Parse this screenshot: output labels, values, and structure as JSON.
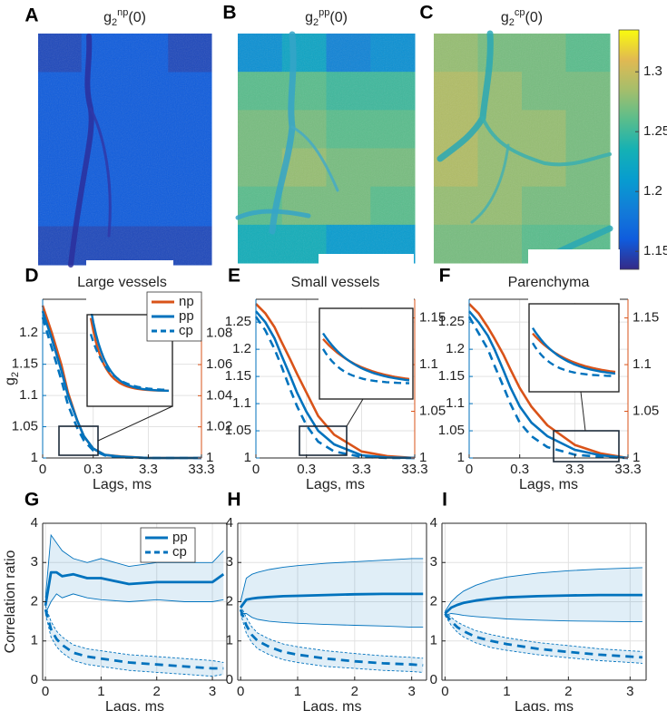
{
  "chart_data": [
    {
      "type": "heatmap",
      "panel": "A",
      "title": {
        "base": "g",
        "sub": "2",
        "sup": "np",
        "tail": "(0)"
      },
      "values": [
        [
          1.15,
          1.16,
          1.16,
          1.15
        ],
        [
          1.16,
          1.16,
          1.16,
          1.16
        ],
        [
          1.16,
          1.16,
          1.16,
          1.16
        ],
        [
          1.16,
          1.16,
          1.16,
          1.16
        ],
        [
          1.16,
          1.16,
          1.16,
          1.16
        ],
        [
          1.15,
          1.15,
          1.15,
          1.15
        ]
      ]
    },
    {
      "type": "heatmap",
      "panel": "B",
      "title": {
        "base": "g",
        "sub": "2",
        "sup": "pp",
        "tail": "(0)"
      },
      "values": [
        [
          1.2,
          1.22,
          1.19,
          1.2
        ],
        [
          1.26,
          1.26,
          1.25,
          1.25
        ],
        [
          1.27,
          1.27,
          1.26,
          1.26
        ],
        [
          1.27,
          1.28,
          1.27,
          1.27
        ],
        [
          1.26,
          1.27,
          1.27,
          1.26
        ],
        [
          1.23,
          1.23,
          1.21,
          1.21
        ]
      ]
    },
    {
      "type": "heatmap",
      "panel": "C",
      "title": {
        "base": "g",
        "sub": "2",
        "sup": "cp",
        "tail": "(0)"
      },
      "values": [
        [
          1.28,
          1.27,
          1.27,
          1.26
        ],
        [
          1.29,
          1.28,
          1.27,
          1.27
        ],
        [
          1.29,
          1.28,
          1.28,
          1.27
        ],
        [
          1.29,
          1.28,
          1.28,
          1.27
        ],
        [
          1.28,
          1.28,
          1.27,
          1.27
        ],
        [
          1.27,
          1.27,
          1.26,
          1.26
        ]
      ]
    },
    {
      "type": "colorbar",
      "clim": [
        1.135,
        1.335
      ],
      "ticks": [
        1.15,
        1.2,
        1.25,
        1.3
      ]
    },
    {
      "type": "line",
      "panel": "D",
      "title": "Large vessels",
      "xlabel": "Lags, ms",
      "ylabel": {
        "base": "g",
        "sub": "2"
      },
      "xscale": "log",
      "x": [
        0.0333,
        0.05,
        0.075,
        0.1,
        0.15,
        0.2,
        0.3,
        0.5,
        1,
        3.3,
        10,
        33.3
      ],
      "xlim": [
        0.0333,
        33.3
      ],
      "xticks": [
        {
          "value": 0.0333,
          "label": "0"
        },
        0.3,
        3.3,
        33.3
      ],
      "ylim": [
        1,
        1.254
      ],
      "yticks": [
        1,
        1.05,
        1.1,
        1.15,
        1.2
      ],
      "y2lim": [
        1,
        1.102
      ],
      "y2ticks": [
        1,
        1.02,
        1.04,
        1.06,
        1.08
      ],
      "axis_color": "#0072bd",
      "y2_color": "#d95319",
      "grid": true,
      "legend": "upper right",
      "series": [
        {
          "name": "np",
          "color": "#d95319",
          "linestyle": "solid",
          "axis": "y2",
          "values": [
            1.098,
            1.08,
            1.06,
            1.042,
            1.024,
            1.014,
            1.006,
            1.002,
            1.001,
            1.0,
            1.0,
            1.0
          ]
        },
        {
          "name": "pp",
          "color": "#0072bd",
          "linestyle": "solid",
          "values": [
            1.235,
            1.19,
            1.14,
            1.1,
            1.06,
            1.035,
            1.015,
            1.005,
            1.002,
            1.0,
            1.0,
            1.0
          ]
        },
        {
          "name": "cp",
          "color": "#0072bd",
          "linestyle": "dashed",
          "values": [
            1.225,
            1.175,
            1.125,
            1.085,
            1.048,
            1.028,
            1.012,
            1.004,
            1.001,
            1.0,
            1.0,
            1.0
          ]
        }
      ]
    },
    {
      "type": "line",
      "panel": "E",
      "title": "Small vessels",
      "xlabel": "Lags, ms",
      "xscale": "log",
      "x": [
        0.0333,
        0.05,
        0.075,
        0.1,
        0.15,
        0.2,
        0.3,
        0.5,
        1,
        3.3,
        10,
        33.3
      ],
      "xlim": [
        0.0333,
        33.3
      ],
      "xticks": [
        {
          "value": 0.0333,
          "label": "0"
        },
        0.3,
        3.3,
        33.3
      ],
      "ylim": [
        1,
        1.292
      ],
      "yticks": [
        1,
        1.05,
        1.1,
        1.15,
        1.2,
        1.25
      ],
      "y2lim": [
        1,
        1.17
      ],
      "y2ticks": [
        1,
        1.05,
        1.1,
        1.15
      ],
      "axis_color": "#0072bd",
      "y2_color": "#d95319",
      "grid": true,
      "series": [
        {
          "name": "np",
          "color": "#d95319",
          "linestyle": "solid",
          "axis": "y2",
          "values": [
            1.165,
            1.155,
            1.14,
            1.125,
            1.105,
            1.09,
            1.07,
            1.045,
            1.025,
            1.007,
            1.002,
            1.0
          ]
        },
        {
          "name": "pp",
          "color": "#0072bd",
          "linestyle": "solid",
          "values": [
            1.27,
            1.25,
            1.22,
            1.19,
            1.15,
            1.12,
            1.085,
            1.05,
            1.025,
            1.005,
            1.001,
            1.0
          ]
        },
        {
          "name": "cp",
          "color": "#0072bd",
          "linestyle": "dashed",
          "values": [
            1.26,
            1.235,
            1.2,
            1.17,
            1.125,
            1.095,
            1.06,
            1.03,
            1.012,
            1.002,
            1.0,
            1.0
          ]
        }
      ]
    },
    {
      "type": "line",
      "panel": "F",
      "title": "Parenchyma",
      "xlabel": "Lags, ms",
      "xscale": "log",
      "x": [
        0.0333,
        0.05,
        0.075,
        0.1,
        0.15,
        0.2,
        0.3,
        0.5,
        1,
        3.3,
        10,
        33.3
      ],
      "xlim": [
        0.0333,
        33.3
      ],
      "xticks": [
        {
          "value": 0.0333,
          "label": "0"
        },
        0.3,
        3.3,
        33.3
      ],
      "ylim": [
        1,
        1.292
      ],
      "yticks": [
        1,
        1.05,
        1.1,
        1.15,
        1.2,
        1.25
      ],
      "y2lim": [
        1,
        1.17
      ],
      "y2ticks": [
        1,
        1.05,
        1.1,
        1.15
      ],
      "axis_color": "#0072bd",
      "y2_color": "#d95319",
      "grid": true,
      "series": [
        {
          "name": "np",
          "color": "#d95319",
          "linestyle": "solid",
          "axis": "y2",
          "values": [
            1.165,
            1.155,
            1.14,
            1.128,
            1.11,
            1.095,
            1.075,
            1.055,
            1.035,
            1.014,
            1.005,
            1.0
          ]
        },
        {
          "name": "pp",
          "color": "#0072bd",
          "linestyle": "solid",
          "values": [
            1.27,
            1.25,
            1.225,
            1.2,
            1.16,
            1.13,
            1.095,
            1.065,
            1.04,
            1.015,
            1.005,
            1.0
          ]
        },
        {
          "name": "cp",
          "color": "#0072bd",
          "linestyle": "dashed",
          "values": [
            1.26,
            1.23,
            1.2,
            1.17,
            1.13,
            1.1,
            1.065,
            1.04,
            1.02,
            1.006,
            1.002,
            1.0
          ]
        }
      ]
    },
    {
      "type": "line",
      "panel": "G",
      "xlabel": "Lags, ms",
      "ylabel": "Correlation ratio",
      "x": [
        0,
        0.1,
        0.2,
        0.3,
        0.5,
        0.75,
        1,
        1.5,
        2,
        2.5,
        3,
        3.2
      ],
      "xlim": [
        -0.05,
        3.26
      ],
      "xticks": [
        0,
        1,
        2,
        3
      ],
      "ylim": [
        0,
        4
      ],
      "yticks": [
        0,
        1,
        2,
        3,
        4
      ],
      "grid": true,
      "legend": "upper right",
      "series": [
        {
          "name": "pp",
          "color": "#0072bd",
          "linestyle": "solid",
          "values": [
            1.9,
            2.75,
            2.75,
            2.65,
            2.7,
            2.6,
            2.6,
            2.45,
            2.5,
            2.5,
            2.5,
            2.7
          ],
          "lower": [
            1.7,
            2.0,
            2.2,
            2.1,
            2.2,
            2.1,
            2.05,
            2.0,
            2.05,
            2.0,
            2.0,
            2.05
          ],
          "upper": [
            2.1,
            3.7,
            3.5,
            3.3,
            3.1,
            3.0,
            3.1,
            2.9,
            3.0,
            3.0,
            3.0,
            3.3
          ]
        },
        {
          "name": "cp",
          "color": "#0072bd",
          "linestyle": "dashed",
          "values": [
            1.8,
            1.3,
            1.05,
            0.9,
            0.7,
            0.6,
            0.55,
            0.45,
            0.4,
            0.35,
            0.3,
            0.3
          ],
          "lower": [
            1.7,
            1.1,
            0.85,
            0.7,
            0.5,
            0.4,
            0.35,
            0.25,
            0.2,
            0.15,
            0.1,
            0.15
          ],
          "upper": [
            1.9,
            1.5,
            1.25,
            1.1,
            0.9,
            0.8,
            0.75,
            0.65,
            0.6,
            0.55,
            0.5,
            0.45
          ]
        }
      ]
    },
    {
      "type": "line",
      "panel": "H",
      "xlabel": "Lags, ms",
      "x": [
        0,
        0.1,
        0.2,
        0.3,
        0.5,
        0.75,
        1,
        1.5,
        2,
        2.5,
        3,
        3.2
      ],
      "xlim": [
        -0.05,
        3.26
      ],
      "xticks": [
        0,
        1,
        2,
        3
      ],
      "ylim": [
        0,
        4
      ],
      "yticks": [
        0,
        1,
        2,
        3,
        4
      ],
      "grid": true,
      "series": [
        {
          "name": "pp",
          "color": "#0072bd",
          "linestyle": "solid",
          "values": [
            1.85,
            2.05,
            2.08,
            2.1,
            2.12,
            2.14,
            2.15,
            2.17,
            2.19,
            2.2,
            2.2,
            2.2
          ],
          "lower": [
            1.7,
            1.7,
            1.6,
            1.55,
            1.5,
            1.47,
            1.45,
            1.42,
            1.4,
            1.38,
            1.35,
            1.35
          ],
          "upper": [
            2.0,
            2.6,
            2.7,
            2.75,
            2.82,
            2.88,
            2.92,
            2.98,
            3.02,
            3.06,
            3.1,
            3.1
          ]
        },
        {
          "name": "cp",
          "color": "#0072bd",
          "linestyle": "dashed",
          "values": [
            1.8,
            1.4,
            1.15,
            1.0,
            0.85,
            0.72,
            0.65,
            0.55,
            0.48,
            0.43,
            0.4,
            0.38
          ],
          "lower": [
            1.7,
            1.2,
            0.95,
            0.8,
            0.65,
            0.52,
            0.45,
            0.35,
            0.3,
            0.25,
            0.22,
            0.2
          ],
          "upper": [
            1.9,
            1.6,
            1.35,
            1.2,
            1.05,
            0.92,
            0.85,
            0.75,
            0.68,
            0.62,
            0.58,
            0.56
          ]
        }
      ]
    },
    {
      "type": "line",
      "panel": "I",
      "xlabel": "Lags, ms",
      "x": [
        0,
        0.1,
        0.2,
        0.3,
        0.5,
        0.75,
        1,
        1.5,
        2,
        2.5,
        3,
        3.2
      ],
      "xlim": [
        -0.05,
        3.26
      ],
      "xticks": [
        0,
        1,
        2,
        3
      ],
      "ylim": [
        0,
        4
      ],
      "yticks": [
        0,
        1,
        2,
        3,
        4
      ],
      "grid": true,
      "series": [
        {
          "name": "pp",
          "color": "#0072bd",
          "linestyle": "solid",
          "values": [
            1.7,
            1.85,
            1.92,
            1.97,
            2.03,
            2.08,
            2.11,
            2.14,
            2.16,
            2.17,
            2.17,
            2.17
          ],
          "lower": [
            1.65,
            1.7,
            1.68,
            1.65,
            1.62,
            1.59,
            1.56,
            1.53,
            1.51,
            1.5,
            1.49,
            1.49
          ],
          "upper": [
            1.75,
            2.0,
            2.15,
            2.27,
            2.42,
            2.55,
            2.63,
            2.73,
            2.79,
            2.83,
            2.86,
            2.87
          ]
        },
        {
          "name": "cp",
          "color": "#0072bd",
          "linestyle": "dashed",
          "values": [
            1.7,
            1.5,
            1.35,
            1.25,
            1.1,
            1.0,
            0.92,
            0.8,
            0.72,
            0.65,
            0.6,
            0.58
          ],
          "lower": [
            1.65,
            1.4,
            1.22,
            1.1,
            0.95,
            0.83,
            0.76,
            0.65,
            0.57,
            0.5,
            0.45,
            0.43
          ],
          "upper": [
            1.75,
            1.6,
            1.48,
            1.4,
            1.26,
            1.16,
            1.08,
            0.96,
            0.88,
            0.8,
            0.75,
            0.73
          ]
        }
      ]
    }
  ]
}
